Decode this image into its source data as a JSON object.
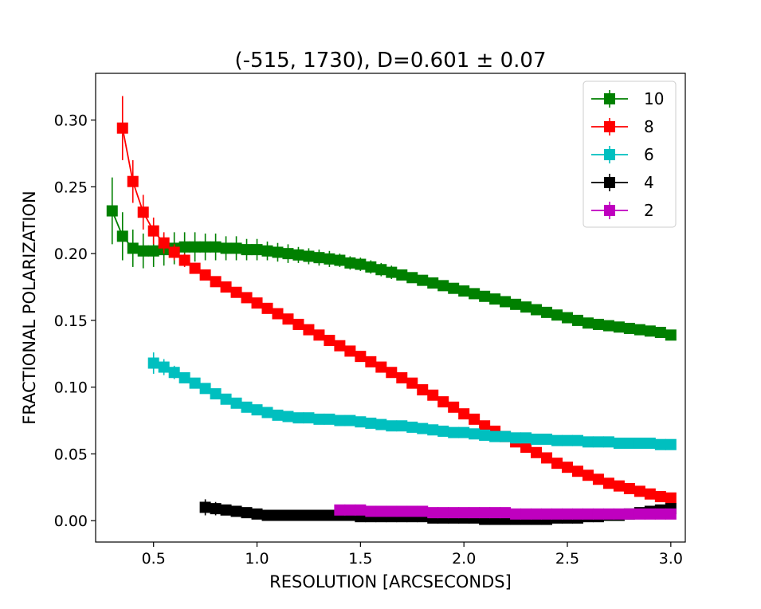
{
  "chart_data": {
    "type": "line",
    "title": "(-515, 1730), D=0.601 ± 0.07",
    "xlabel": "RESOLUTION [ARCSECONDS]",
    "ylabel": "FRACTIONAL POLARIZATION",
    "xlim": [
      0.22,
      3.07
    ],
    "ylim": [
      -0.016,
      0.335
    ],
    "xticks": [
      0.5,
      1.0,
      1.5,
      2.0,
      2.5,
      3.0
    ],
    "xtick_labels": [
      "0.5",
      "1.0",
      "1.5",
      "2.0",
      "2.5",
      "3.0"
    ],
    "yticks": [
      0.0,
      0.05,
      0.1,
      0.15,
      0.2,
      0.25,
      0.3
    ],
    "ytick_labels": [
      "0.00",
      "0.05",
      "0.10",
      "0.15",
      "0.20",
      "0.25",
      "0.30"
    ],
    "grid": false,
    "legend_position": "top-right",
    "series": [
      {
        "name": "10",
        "color": "#008000",
        "x": [
          0.3,
          0.35,
          0.4,
          0.45,
          0.5,
          0.55,
          0.6,
          0.65,
          0.7,
          0.75,
          0.8,
          0.85,
          0.9,
          0.95,
          1.0,
          1.05,
          1.1,
          1.15,
          1.2,
          1.25,
          1.3,
          1.35,
          1.4,
          1.45,
          1.5,
          1.55,
          1.6,
          1.65,
          1.7,
          1.75,
          1.8,
          1.85,
          1.9,
          1.95,
          2.0,
          2.05,
          2.1,
          2.15,
          2.2,
          2.25,
          2.3,
          2.35,
          2.4,
          2.45,
          2.5,
          2.55,
          2.6,
          2.65,
          2.7,
          2.75,
          2.8,
          2.85,
          2.9,
          2.95,
          3.0
        ],
        "y": [
          0.232,
          0.213,
          0.204,
          0.202,
          0.202,
          0.203,
          0.204,
          0.205,
          0.205,
          0.205,
          0.205,
          0.204,
          0.204,
          0.203,
          0.203,
          0.202,
          0.201,
          0.2,
          0.199,
          0.198,
          0.197,
          0.196,
          0.195,
          0.193,
          0.192,
          0.19,
          0.188,
          0.186,
          0.184,
          0.182,
          0.18,
          0.178,
          0.176,
          0.174,
          0.172,
          0.17,
          0.168,
          0.166,
          0.164,
          0.162,
          0.16,
          0.158,
          0.156,
          0.154,
          0.152,
          0.15,
          0.148,
          0.147,
          0.146,
          0.145,
          0.144,
          0.143,
          0.142,
          0.141,
          0.139
        ],
        "err": [
          0.025,
          0.018,
          0.014,
          0.013,
          0.012,
          0.012,
          0.012,
          0.011,
          0.011,
          0.01,
          0.01,
          0.009,
          0.009,
          0.008,
          0.008,
          0.007,
          0.007,
          0.007,
          0.006,
          0.006,
          0.006,
          0.006,
          0.005,
          0.005,
          0.005,
          0.005,
          0.005,
          0.005,
          0.004,
          0.004,
          0.004,
          0.004,
          0.004,
          0.004,
          0.004,
          0.004,
          0.004,
          0.003,
          0.003,
          0.003,
          0.003,
          0.003,
          0.003,
          0.003,
          0.003,
          0.003,
          0.003,
          0.003,
          0.003,
          0.003,
          0.003,
          0.003,
          0.003,
          0.003,
          0.003
        ]
      },
      {
        "name": "8",
        "color": "#ff0000",
        "x": [
          0.35,
          0.4,
          0.45,
          0.5,
          0.55,
          0.6,
          0.65,
          0.7,
          0.75,
          0.8,
          0.85,
          0.9,
          0.95,
          1.0,
          1.05,
          1.1,
          1.15,
          1.2,
          1.25,
          1.3,
          1.35,
          1.4,
          1.45,
          1.5,
          1.55,
          1.6,
          1.65,
          1.7,
          1.75,
          1.8,
          1.85,
          1.9,
          1.95,
          2.0,
          2.05,
          2.1,
          2.15,
          2.2,
          2.25,
          2.3,
          2.35,
          2.4,
          2.45,
          2.5,
          2.55,
          2.6,
          2.65,
          2.7,
          2.75,
          2.8,
          2.85,
          2.9,
          2.95,
          3.0
        ],
        "y": [
          0.294,
          0.254,
          0.231,
          0.217,
          0.208,
          0.201,
          0.195,
          0.189,
          0.184,
          0.179,
          0.175,
          0.171,
          0.167,
          0.163,
          0.159,
          0.155,
          0.151,
          0.147,
          0.143,
          0.139,
          0.135,
          0.131,
          0.127,
          0.123,
          0.119,
          0.115,
          0.111,
          0.107,
          0.103,
          0.098,
          0.094,
          0.089,
          0.085,
          0.08,
          0.076,
          0.071,
          0.067,
          0.063,
          0.059,
          0.055,
          0.051,
          0.047,
          0.043,
          0.04,
          0.037,
          0.034,
          0.031,
          0.028,
          0.026,
          0.024,
          0.022,
          0.02,
          0.018,
          0.017
        ],
        "err": [
          0.024,
          0.016,
          0.013,
          0.01,
          0.008,
          0.006,
          0.005,
          0.004,
          0.003,
          0.003,
          0.003,
          0.003,
          0.003,
          0.003,
          0.003,
          0.003,
          0.003,
          0.003,
          0.003,
          0.003,
          0.003,
          0.003,
          0.003,
          0.003,
          0.003,
          0.003,
          0.003,
          0.003,
          0.003,
          0.003,
          0.003,
          0.003,
          0.003,
          0.003,
          0.003,
          0.003,
          0.003,
          0.003,
          0.003,
          0.003,
          0.003,
          0.003,
          0.003,
          0.003,
          0.003,
          0.003,
          0.003,
          0.003,
          0.003,
          0.003,
          0.003,
          0.003,
          0.003,
          0.003
        ]
      },
      {
        "name": "6",
        "color": "#00bfbf",
        "x": [
          0.5,
          0.55,
          0.6,
          0.65,
          0.7,
          0.75,
          0.8,
          0.85,
          0.9,
          0.95,
          1.0,
          1.05,
          1.1,
          1.15,
          1.2,
          1.25,
          1.3,
          1.35,
          1.4,
          1.45,
          1.5,
          1.55,
          1.6,
          1.65,
          1.7,
          1.75,
          1.8,
          1.85,
          1.9,
          1.95,
          2.0,
          2.05,
          2.1,
          2.15,
          2.2,
          2.25,
          2.3,
          2.35,
          2.4,
          2.45,
          2.5,
          2.55,
          2.6,
          2.65,
          2.7,
          2.75,
          2.8,
          2.85,
          2.9,
          2.95,
          3.0
        ],
        "y": [
          0.118,
          0.115,
          0.111,
          0.107,
          0.103,
          0.099,
          0.095,
          0.091,
          0.088,
          0.085,
          0.083,
          0.081,
          0.079,
          0.078,
          0.077,
          0.077,
          0.076,
          0.076,
          0.075,
          0.075,
          0.074,
          0.073,
          0.072,
          0.071,
          0.071,
          0.07,
          0.069,
          0.068,
          0.067,
          0.066,
          0.066,
          0.065,
          0.064,
          0.063,
          0.063,
          0.062,
          0.062,
          0.061,
          0.061,
          0.06,
          0.06,
          0.06,
          0.059,
          0.059,
          0.059,
          0.058,
          0.058,
          0.058,
          0.058,
          0.057,
          0.057
        ],
        "err": [
          0.008,
          0.006,
          0.005,
          0.004,
          0.004,
          0.003,
          0.003,
          0.003,
          0.003,
          0.003,
          0.003,
          0.003,
          0.003,
          0.003,
          0.003,
          0.003,
          0.003,
          0.003,
          0.003,
          0.003,
          0.003,
          0.003,
          0.003,
          0.003,
          0.003,
          0.003,
          0.003,
          0.003,
          0.003,
          0.003,
          0.003,
          0.003,
          0.003,
          0.003,
          0.003,
          0.003,
          0.003,
          0.003,
          0.003,
          0.003,
          0.003,
          0.003,
          0.003,
          0.003,
          0.003,
          0.003,
          0.003,
          0.003,
          0.003,
          0.003,
          0.003
        ]
      },
      {
        "name": "4",
        "color": "#000000",
        "x": [
          0.75,
          0.8,
          0.85,
          0.9,
          0.95,
          1.0,
          1.05,
          1.1,
          1.15,
          1.2,
          1.25,
          1.3,
          1.35,
          1.4,
          1.45,
          1.5,
          1.55,
          1.6,
          1.65,
          1.7,
          1.75,
          1.8,
          1.85,
          1.9,
          1.95,
          2.0,
          2.05,
          2.1,
          2.15,
          2.2,
          2.25,
          2.3,
          2.35,
          2.4,
          2.45,
          2.5,
          2.55,
          2.6,
          2.65,
          2.7,
          2.75,
          2.8,
          2.85,
          2.9,
          2.95,
          3.0
        ],
        "y": [
          0.01,
          0.009,
          0.008,
          0.007,
          0.006,
          0.005,
          0.004,
          0.004,
          0.004,
          0.004,
          0.004,
          0.004,
          0.004,
          0.004,
          0.004,
          0.003,
          0.003,
          0.003,
          0.003,
          0.003,
          0.003,
          0.003,
          0.002,
          0.002,
          0.002,
          0.002,
          0.002,
          0.001,
          0.001,
          0.001,
          0.001,
          0.001,
          0.001,
          0.001,
          0.002,
          0.002,
          0.002,
          0.003,
          0.003,
          0.004,
          0.004,
          0.005,
          0.006,
          0.007,
          0.008,
          0.009
        ],
        "err": [
          0.006,
          0.005,
          0.004,
          0.004,
          0.003,
          0.003,
          0.003,
          0.003,
          0.003,
          0.003,
          0.003,
          0.003,
          0.003,
          0.003,
          0.003,
          0.003,
          0.003,
          0.003,
          0.003,
          0.003,
          0.003,
          0.003,
          0.003,
          0.003,
          0.003,
          0.003,
          0.003,
          0.003,
          0.003,
          0.003,
          0.003,
          0.003,
          0.003,
          0.003,
          0.003,
          0.003,
          0.003,
          0.003,
          0.003,
          0.003,
          0.003,
          0.003,
          0.003,
          0.003,
          0.003,
          0.003
        ]
      },
      {
        "name": "2",
        "color": "#bf00bf",
        "x": [
          1.4,
          1.45,
          1.5,
          1.55,
          1.6,
          1.65,
          1.7,
          1.75,
          1.8,
          1.85,
          1.9,
          1.95,
          2.0,
          2.05,
          2.1,
          2.15,
          2.2,
          2.25,
          2.3,
          2.35,
          2.4,
          2.45,
          2.5,
          2.55,
          2.6,
          2.65,
          2.7,
          2.75,
          2.8,
          2.85,
          2.9,
          2.95,
          3.0
        ],
        "y": [
          0.008,
          0.008,
          0.008,
          0.007,
          0.007,
          0.007,
          0.007,
          0.007,
          0.007,
          0.006,
          0.006,
          0.006,
          0.006,
          0.006,
          0.006,
          0.006,
          0.006,
          0.005,
          0.005,
          0.005,
          0.005,
          0.005,
          0.005,
          0.005,
          0.005,
          0.005,
          0.005,
          0.005,
          0.005,
          0.005,
          0.005,
          0.005,
          0.005
        ],
        "err": [
          0.003,
          0.003,
          0.003,
          0.003,
          0.003,
          0.003,
          0.003,
          0.003,
          0.003,
          0.003,
          0.003,
          0.003,
          0.003,
          0.003,
          0.003,
          0.003,
          0.003,
          0.003,
          0.003,
          0.003,
          0.003,
          0.003,
          0.003,
          0.003,
          0.003,
          0.003,
          0.003,
          0.003,
          0.003,
          0.003,
          0.003,
          0.003,
          0.003
        ]
      }
    ]
  }
}
